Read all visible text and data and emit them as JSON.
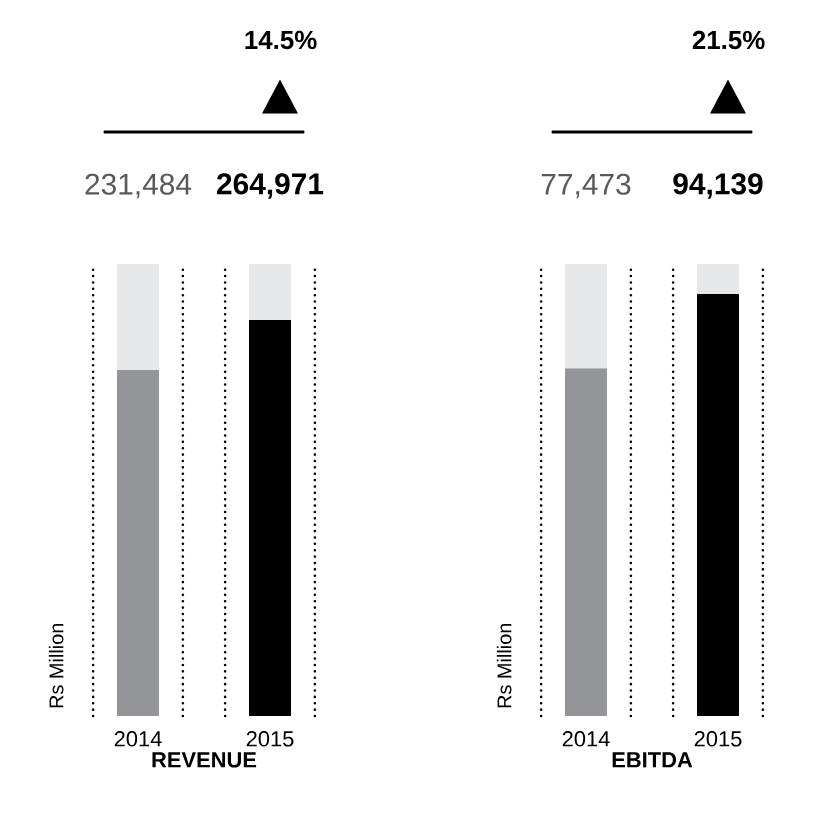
{
  "chart_data": [
    {
      "type": "bar",
      "xlabel": "REVENUE",
      "ylabel": "Rs Million",
      "categories": [
        "2014",
        "2015"
      ],
      "values": [
        231484,
        264971
      ],
      "value_labels": [
        "231,484",
        "264,971"
      ],
      "colors": [
        "#939598",
        "#000000"
      ],
      "ylim": [
        0,
        302500
      ],
      "annotations": [
        "14.5%"
      ]
    },
    {
      "type": "bar",
      "xlabel": "EBITDA",
      "ylabel": "Rs Million",
      "categories": [
        "2014",
        "2015"
      ],
      "values": [
        77473,
        94139
      ],
      "value_labels": [
        "77,473",
        "94,139"
      ],
      "colors": [
        "#939598",
        "#000000"
      ],
      "ylim": [
        0,
        100800
      ],
      "annotations": [
        "21.5%"
      ]
    }
  ]
}
